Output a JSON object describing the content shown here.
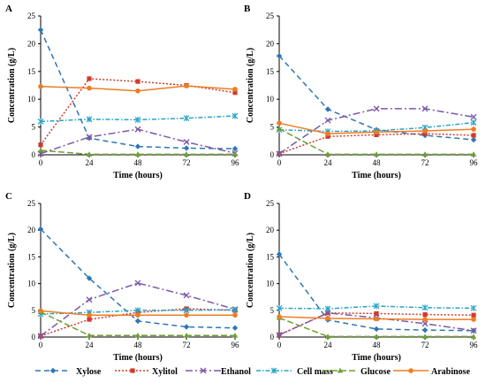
{
  "colors": {
    "Xylose": "#2e75b6",
    "Xylitol": "#d03a2b",
    "Ethanol": "#7b5aa6",
    "Cell mass": "#29a3c8",
    "Glucose": "#6e9e34",
    "Arabinose": "#ee7d24"
  },
  "legend": [
    "Xylose",
    "Xylitol",
    "Ethanol",
    "Cell mass",
    "Glucose",
    "Arabinose"
  ],
  "chart_data": [
    {
      "panel": "A",
      "type": "line",
      "xlabel": "Time (hours)",
      "ylabel": "Concentration (g/L)",
      "x": [
        0,
        24,
        48,
        72,
        96
      ],
      "xticks": [
        "0",
        "24",
        "48",
        "72",
        "96"
      ],
      "ylim": [
        0,
        25
      ],
      "yticks": [
        "0",
        "5",
        "10",
        "15",
        "20",
        "25"
      ],
      "grid": false,
      "series": [
        {
          "name": "Xylose",
          "values": [
            22.5,
            3.0,
            1.5,
            1.2,
            1.1
          ]
        },
        {
          "name": "Xylitol",
          "values": [
            1.8,
            13.7,
            13.2,
            12.5,
            11.2
          ]
        },
        {
          "name": "Ethanol",
          "values": [
            0.2,
            3.2,
            4.6,
            2.3,
            0.3
          ]
        },
        {
          "name": "Cell mass",
          "values": [
            6.0,
            6.4,
            6.3,
            6.6,
            7.0
          ]
        },
        {
          "name": "Glucose",
          "values": [
            0.8,
            0.1,
            0.1,
            0.1,
            0.1
          ]
        },
        {
          "name": "Arabinose",
          "values": [
            12.3,
            12.0,
            11.5,
            12.4,
            11.8
          ]
        }
      ]
    },
    {
      "panel": "B",
      "type": "line",
      "xlabel": "Time (hours)",
      "ylabel": "Concentration (g/L)",
      "x": [
        0,
        24,
        48,
        72,
        96
      ],
      "xticks": [
        "0",
        "24",
        "48",
        "72",
        "96"
      ],
      "ylim": [
        0,
        25
      ],
      "yticks": [
        "0",
        "5",
        "10",
        "15",
        "20",
        "25"
      ],
      "grid": false,
      "series": [
        {
          "name": "Xylose",
          "values": [
            17.8,
            8.2,
            4.5,
            3.5,
            2.7
          ]
        },
        {
          "name": "Xylitol",
          "values": [
            0.2,
            3.3,
            3.6,
            3.8,
            3.5
          ]
        },
        {
          "name": "Ethanol",
          "values": [
            0.2,
            6.2,
            8.3,
            8.3,
            6.8
          ]
        },
        {
          "name": "Cell mass",
          "values": [
            4.5,
            4.2,
            4.3,
            4.9,
            5.8
          ]
        },
        {
          "name": "Glucose",
          "values": [
            4.7,
            0.1,
            0.1,
            0.1,
            0.1
          ]
        },
        {
          "name": "Arabinose",
          "values": [
            5.7,
            3.8,
            4.1,
            4.3,
            4.6
          ]
        }
      ]
    },
    {
      "panel": "C",
      "type": "line",
      "xlabel": "Time (hours)",
      "ylabel": "Concentration (g/L)",
      "x": [
        0,
        24,
        48,
        72,
        96
      ],
      "xticks": [
        "0",
        "24",
        "48",
        "72",
        "96"
      ],
      "ylim": [
        0,
        25
      ],
      "yticks": [
        "0",
        "5",
        "10",
        "15",
        "20",
        "25"
      ],
      "grid": false,
      "series": [
        {
          "name": "Xylose",
          "values": [
            20.2,
            11.0,
            3.0,
            1.9,
            1.7
          ]
        },
        {
          "name": "Xylitol",
          "values": [
            0.2,
            3.3,
            4.6,
            5.3,
            5.0
          ]
        },
        {
          "name": "Ethanol",
          "values": [
            0.2,
            7.0,
            10.1,
            7.8,
            5.2
          ]
        },
        {
          "name": "Cell mass",
          "values": [
            4.3,
            4.6,
            5.0,
            5.0,
            5.1
          ]
        },
        {
          "name": "Glucose",
          "values": [
            4.7,
            0.3,
            0.3,
            0.3,
            0.3
          ]
        },
        {
          "name": "Arabinose",
          "values": [
            4.9,
            4.1,
            4.1,
            4.1,
            4.1
          ]
        }
      ]
    },
    {
      "panel": "D",
      "type": "line",
      "xlabel": "Time (hours)",
      "ylabel": "Concentration (g/L)",
      "x": [
        0,
        24,
        48,
        72,
        96
      ],
      "xticks": [
        "0",
        "24",
        "48",
        "72",
        "96"
      ],
      "ylim": [
        0,
        25
      ],
      "yticks": [
        "0",
        "5",
        "10",
        "15",
        "20",
        "25"
      ],
      "grid": false,
      "series": [
        {
          "name": "Xylose",
          "values": [
            15.5,
            3.2,
            1.5,
            1.3,
            1.2
          ]
        },
        {
          "name": "Xylitol",
          "values": [
            0.4,
            4.5,
            4.4,
            4.2,
            4.1
          ]
        },
        {
          "name": "Ethanol",
          "values": [
            0.4,
            4.5,
            3.6,
            2.5,
            1.2
          ]
        },
        {
          "name": "Cell mass",
          "values": [
            5.4,
            5.3,
            5.8,
            5.5,
            5.4
          ]
        },
        {
          "name": "Glucose",
          "values": [
            3.6,
            0.1,
            0.1,
            0.1,
            0.1
          ]
        },
        {
          "name": "Arabinose",
          "values": [
            3.8,
            3.5,
            3.4,
            3.3,
            3.3
          ]
        }
      ]
    }
  ]
}
